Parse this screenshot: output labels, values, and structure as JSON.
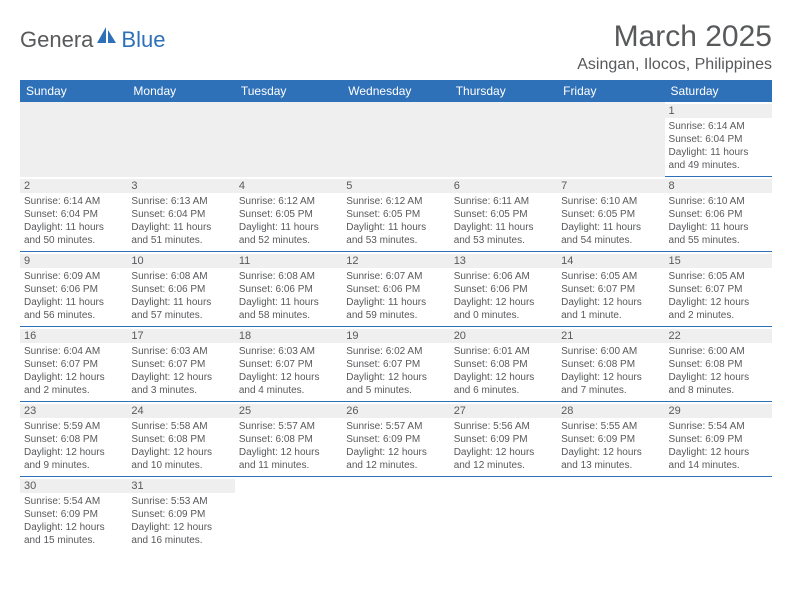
{
  "logo": {
    "part1": "Genera",
    "part2": "Blue"
  },
  "title": "March 2025",
  "location": "Asingan, Ilocos, Philippines",
  "colors": {
    "header_bg": "#2f71b8",
    "header_text": "#ffffff",
    "body_text": "#58595b",
    "daynum_bg": "#efefef",
    "row_divider": "#2f71b8",
    "page_bg": "#ffffff"
  },
  "weekdays": [
    "Sunday",
    "Monday",
    "Tuesday",
    "Wednesday",
    "Thursday",
    "Friday",
    "Saturday"
  ],
  "weeks": [
    [
      null,
      null,
      null,
      null,
      null,
      null,
      {
        "n": "1",
        "sr": "Sunrise: 6:14 AM",
        "ss": "Sunset: 6:04 PM",
        "dl1": "Daylight: 11 hours",
        "dl2": "and 49 minutes."
      }
    ],
    [
      {
        "n": "2",
        "sr": "Sunrise: 6:14 AM",
        "ss": "Sunset: 6:04 PM",
        "dl1": "Daylight: 11 hours",
        "dl2": "and 50 minutes."
      },
      {
        "n": "3",
        "sr": "Sunrise: 6:13 AM",
        "ss": "Sunset: 6:04 PM",
        "dl1": "Daylight: 11 hours",
        "dl2": "and 51 minutes."
      },
      {
        "n": "4",
        "sr": "Sunrise: 6:12 AM",
        "ss": "Sunset: 6:05 PM",
        "dl1": "Daylight: 11 hours",
        "dl2": "and 52 minutes."
      },
      {
        "n": "5",
        "sr": "Sunrise: 6:12 AM",
        "ss": "Sunset: 6:05 PM",
        "dl1": "Daylight: 11 hours",
        "dl2": "and 53 minutes."
      },
      {
        "n": "6",
        "sr": "Sunrise: 6:11 AM",
        "ss": "Sunset: 6:05 PM",
        "dl1": "Daylight: 11 hours",
        "dl2": "and 53 minutes."
      },
      {
        "n": "7",
        "sr": "Sunrise: 6:10 AM",
        "ss": "Sunset: 6:05 PM",
        "dl1": "Daylight: 11 hours",
        "dl2": "and 54 minutes."
      },
      {
        "n": "8",
        "sr": "Sunrise: 6:10 AM",
        "ss": "Sunset: 6:06 PM",
        "dl1": "Daylight: 11 hours",
        "dl2": "and 55 minutes."
      }
    ],
    [
      {
        "n": "9",
        "sr": "Sunrise: 6:09 AM",
        "ss": "Sunset: 6:06 PM",
        "dl1": "Daylight: 11 hours",
        "dl2": "and 56 minutes."
      },
      {
        "n": "10",
        "sr": "Sunrise: 6:08 AM",
        "ss": "Sunset: 6:06 PM",
        "dl1": "Daylight: 11 hours",
        "dl2": "and 57 minutes."
      },
      {
        "n": "11",
        "sr": "Sunrise: 6:08 AM",
        "ss": "Sunset: 6:06 PM",
        "dl1": "Daylight: 11 hours",
        "dl2": "and 58 minutes."
      },
      {
        "n": "12",
        "sr": "Sunrise: 6:07 AM",
        "ss": "Sunset: 6:06 PM",
        "dl1": "Daylight: 11 hours",
        "dl2": "and 59 minutes."
      },
      {
        "n": "13",
        "sr": "Sunrise: 6:06 AM",
        "ss": "Sunset: 6:06 PM",
        "dl1": "Daylight: 12 hours",
        "dl2": "and 0 minutes."
      },
      {
        "n": "14",
        "sr": "Sunrise: 6:05 AM",
        "ss": "Sunset: 6:07 PM",
        "dl1": "Daylight: 12 hours",
        "dl2": "and 1 minute."
      },
      {
        "n": "15",
        "sr": "Sunrise: 6:05 AM",
        "ss": "Sunset: 6:07 PM",
        "dl1": "Daylight: 12 hours",
        "dl2": "and 2 minutes."
      }
    ],
    [
      {
        "n": "16",
        "sr": "Sunrise: 6:04 AM",
        "ss": "Sunset: 6:07 PM",
        "dl1": "Daylight: 12 hours",
        "dl2": "and 2 minutes."
      },
      {
        "n": "17",
        "sr": "Sunrise: 6:03 AM",
        "ss": "Sunset: 6:07 PM",
        "dl1": "Daylight: 12 hours",
        "dl2": "and 3 minutes."
      },
      {
        "n": "18",
        "sr": "Sunrise: 6:03 AM",
        "ss": "Sunset: 6:07 PM",
        "dl1": "Daylight: 12 hours",
        "dl2": "and 4 minutes."
      },
      {
        "n": "19",
        "sr": "Sunrise: 6:02 AM",
        "ss": "Sunset: 6:07 PM",
        "dl1": "Daylight: 12 hours",
        "dl2": "and 5 minutes."
      },
      {
        "n": "20",
        "sr": "Sunrise: 6:01 AM",
        "ss": "Sunset: 6:08 PM",
        "dl1": "Daylight: 12 hours",
        "dl2": "and 6 minutes."
      },
      {
        "n": "21",
        "sr": "Sunrise: 6:00 AM",
        "ss": "Sunset: 6:08 PM",
        "dl1": "Daylight: 12 hours",
        "dl2": "and 7 minutes."
      },
      {
        "n": "22",
        "sr": "Sunrise: 6:00 AM",
        "ss": "Sunset: 6:08 PM",
        "dl1": "Daylight: 12 hours",
        "dl2": "and 8 minutes."
      }
    ],
    [
      {
        "n": "23",
        "sr": "Sunrise: 5:59 AM",
        "ss": "Sunset: 6:08 PM",
        "dl1": "Daylight: 12 hours",
        "dl2": "and 9 minutes."
      },
      {
        "n": "24",
        "sr": "Sunrise: 5:58 AM",
        "ss": "Sunset: 6:08 PM",
        "dl1": "Daylight: 12 hours",
        "dl2": "and 10 minutes."
      },
      {
        "n": "25",
        "sr": "Sunrise: 5:57 AM",
        "ss": "Sunset: 6:08 PM",
        "dl1": "Daylight: 12 hours",
        "dl2": "and 11 minutes."
      },
      {
        "n": "26",
        "sr": "Sunrise: 5:57 AM",
        "ss": "Sunset: 6:09 PM",
        "dl1": "Daylight: 12 hours",
        "dl2": "and 12 minutes."
      },
      {
        "n": "27",
        "sr": "Sunrise: 5:56 AM",
        "ss": "Sunset: 6:09 PM",
        "dl1": "Daylight: 12 hours",
        "dl2": "and 12 minutes."
      },
      {
        "n": "28",
        "sr": "Sunrise: 5:55 AM",
        "ss": "Sunset: 6:09 PM",
        "dl1": "Daylight: 12 hours",
        "dl2": "and 13 minutes."
      },
      {
        "n": "29",
        "sr": "Sunrise: 5:54 AM",
        "ss": "Sunset: 6:09 PM",
        "dl1": "Daylight: 12 hours",
        "dl2": "and 14 minutes."
      }
    ],
    [
      {
        "n": "30",
        "sr": "Sunrise: 5:54 AM",
        "ss": "Sunset: 6:09 PM",
        "dl1": "Daylight: 12 hours",
        "dl2": "and 15 minutes."
      },
      {
        "n": "31",
        "sr": "Sunrise: 5:53 AM",
        "ss": "Sunset: 6:09 PM",
        "dl1": "Daylight: 12 hours",
        "dl2": "and 16 minutes."
      },
      null,
      null,
      null,
      null,
      null
    ]
  ]
}
